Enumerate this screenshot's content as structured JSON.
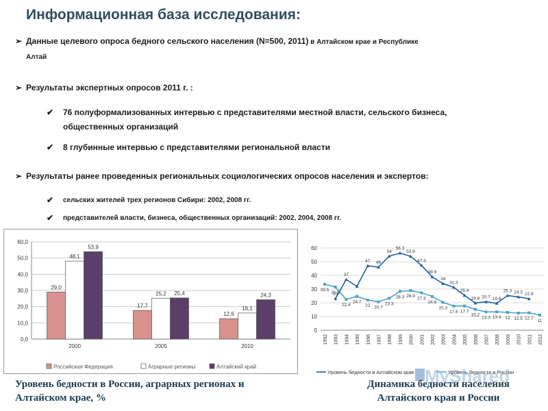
{
  "slide": {
    "title": "Информационная база исследования:"
  },
  "bullets": [
    {
      "main": "Данные   целевого опроса бедного сельского населения (N=500, 2011)",
      "tail": " в Алтайском крае и Республике",
      "tail2": "Алтай"
    },
    {
      "main": "Результаты экспертных опросов 2011 г. :"
    },
    {
      "sub": "76 полуформализованных интервью с представителями местной власти, сельского бизнеса,",
      "sub2": "общественных организаций"
    },
    {
      "sub": "8 глубинные интервью с представителями региональной власти"
    },
    {
      "main": "Результаты ранее проведенных региональных социологических опросов населения и экспертов:"
    },
    {
      "sub": "сельских жителей трех регионов Сибири: 2002, 2008 гг."
    },
    {
      "sub": "представителей власти, бизнеса, общественных организаций: 2002, 2004, 2008 гг."
    }
  ],
  "chart_data": [
    {
      "type": "bar",
      "categories": [
        "2000",
        "2005",
        "2010"
      ],
      "series": [
        {
          "name": "Российская Федерация",
          "values": [
            29.0,
            17.7,
            12.6
          ],
          "color": "#d9918e"
        },
        {
          "name": "Аграрные регионы",
          "values": [
            48.1,
            25.2,
            16.1
          ],
          "color": "#ffffff"
        },
        {
          "name": "Алтайский край",
          "values": [
            53.9,
            25.4,
            24.3
          ],
          "color": "#5b3f6a"
        }
      ],
      "value_labels": [
        [
          "29,0",
          "17,7",
          "12,6"
        ],
        [
          "48,1",
          "25,2",
          "16,1"
        ],
        [
          "53,9",
          "25,4",
          "24,3"
        ]
      ],
      "ylim": [
        0,
        60
      ],
      "yticks": [
        "0,0",
        "10,0",
        "20,0",
        "30,0",
        "40,0",
        "50,0",
        "60,0"
      ],
      "grid": true,
      "legend": "bottom"
    },
    {
      "type": "line",
      "x": [
        "1992",
        "1993",
        "1994",
        "1995",
        "1996",
        "1997",
        "1998",
        "1999",
        "2000",
        "2001",
        "2002",
        "2003",
        "2004",
        "2005",
        "2006",
        "2007",
        "2008",
        "2009",
        "2010",
        "2011",
        "2012"
      ],
      "series": [
        {
          "name": "Уровень бедности в Алтайском крае",
          "values": [
            null,
            23,
            37,
            32,
            47,
            46,
            54,
            56.3,
            53.9,
            47.3,
            38.9,
            34,
            31.3,
            25.4,
            19.8,
            20.7,
            19.6,
            25.3,
            24.3,
            22.9,
            null
          ],
          "color": "#1f5fa6"
        },
        {
          "name": "Уровень бедности в России",
          "values": [
            33.5,
            31.5,
            22.4,
            24.7,
            22,
            20.7,
            23.3,
            28.3,
            28.9,
            27.3,
            24.6,
            20.3,
            17.6,
            17.7,
            15.2,
            13.3,
            13.4,
            13,
            12.5,
            12.7,
            11
          ],
          "color": "#4aa3c8"
        }
      ],
      "labels_altai": [
        "",
        "23",
        "37",
        "",
        "47",
        "46",
        "54",
        "56.3",
        "53.9",
        "47.3",
        "38.9",
        "34",
        "31.3",
        "25.4",
        "19.8",
        "20.7",
        "19.6",
        "25.3",
        "24.3",
        "22.9",
        ""
      ],
      "labels_russia": [
        "33.5",
        "31.5",
        "22.4",
        "24.7",
        "22",
        "20.7",
        "23.3",
        "28.3",
        "28.9",
        "27.3",
        "24.6",
        "20.3",
        "17.6",
        "17.7",
        "15.2",
        "13.3",
        "13.4",
        "13",
        "12.5",
        "12.7",
        "11"
      ],
      "ylim": [
        0,
        60
      ],
      "yticks": [
        "0",
        "10",
        "20",
        "30",
        "40",
        "50",
        "60"
      ],
      "grid": true,
      "legend": "bottom"
    }
  ],
  "captions": {
    "left": "Уровень бедности в России, аграрных регионах и Алтайском крае, %",
    "right": "Динамика бедности населения Алтайского края и России"
  },
  "watermark": "MyShared"
}
